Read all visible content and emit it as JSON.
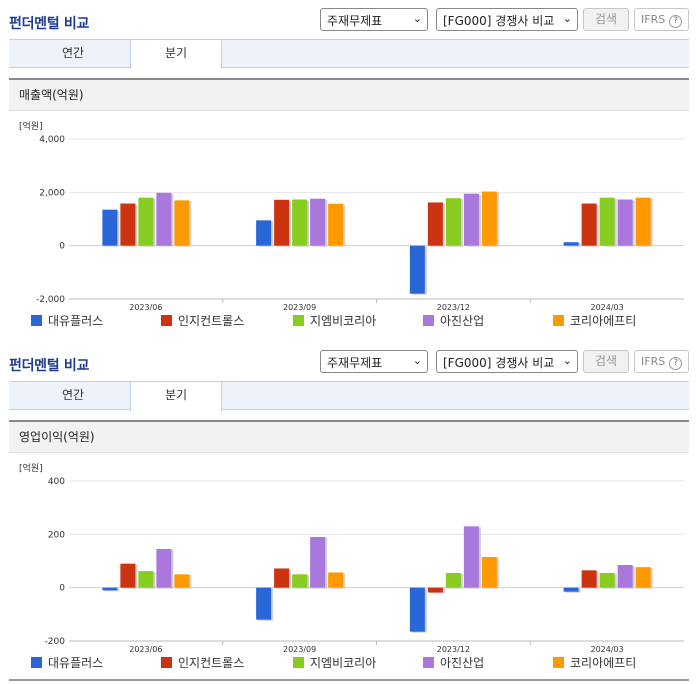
{
  "sections": [
    {
      "title": "펀더멘털 비교",
      "select_statement": "주재무제표",
      "select_group": "[FG000] 경쟁사 비교",
      "search_label": "검색",
      "ifrs_label": "IFRS",
      "ifrs_help": "?",
      "tabs": [
        "연간",
        "분기"
      ],
      "active_tab": "분기",
      "panel_title": "매출액(억원)",
      "unit_label": "[억원]"
    },
    {
      "title": "펀더멘털 비교",
      "select_statement": "주재무제표",
      "select_group": "[FG000] 경쟁사 비교",
      "search_label": "검색",
      "ifrs_label": "IFRS",
      "ifrs_help": "?",
      "tabs": [
        "연간",
        "분기"
      ],
      "active_tab": "분기",
      "panel_title": "영업이익(억원)",
      "unit_label": "[억원]"
    }
  ],
  "colors": [
    "#2a66d8",
    "#cc3311",
    "#88cc22",
    "#aa77dd",
    "#ff9900"
  ],
  "chart_data": [
    {
      "type": "bar",
      "title": "매출액(억원)",
      "ylabel": "[억원]",
      "categories": [
        "2023/06",
        "2023/09",
        "2023/12",
        "2024/03"
      ],
      "ylim": [
        -2000,
        4000
      ],
      "yticks": [
        4000,
        2000,
        0,
        -2000
      ],
      "ytick_labels": [
        "4,000",
        "2,000",
        "0",
        "-2,000"
      ],
      "series": [
        {
          "name": "대유플러스",
          "values": [
            1350,
            950,
            -1800,
            130
          ]
        },
        {
          "name": "인지컨트롤스",
          "values": [
            1580,
            1720,
            1620,
            1580
          ]
        },
        {
          "name": "지엠비코리아",
          "values": [
            1800,
            1730,
            1780,
            1800
          ]
        },
        {
          "name": "아진산업",
          "values": [
            1980,
            1760,
            1950,
            1730
          ]
        },
        {
          "name": "코리아에프티",
          "values": [
            1700,
            1570,
            2030,
            1800
          ]
        }
      ]
    },
    {
      "type": "bar",
      "title": "영업이익(억원)",
      "ylabel": "[억원]",
      "categories": [
        "2023/06",
        "2023/09",
        "2023/12",
        "2024/03"
      ],
      "ylim": [
        -200,
        400
      ],
      "yticks": [
        400,
        200,
        0,
        -200
      ],
      "ytick_labels": [
        "400",
        "200",
        "0",
        "-200"
      ],
      "series": [
        {
          "name": "대유플러스",
          "values": [
            -10,
            -120,
            -165,
            -15
          ]
        },
        {
          "name": "인지컨트롤스",
          "values": [
            90,
            72,
            -18,
            65
          ]
        },
        {
          "name": "지엠비코리아",
          "values": [
            62,
            50,
            55,
            55
          ]
        },
        {
          "name": "아진산업",
          "values": [
            145,
            190,
            230,
            85
          ]
        },
        {
          "name": "코리아에프티",
          "values": [
            50,
            57,
            115,
            77
          ]
        }
      ]
    }
  ]
}
